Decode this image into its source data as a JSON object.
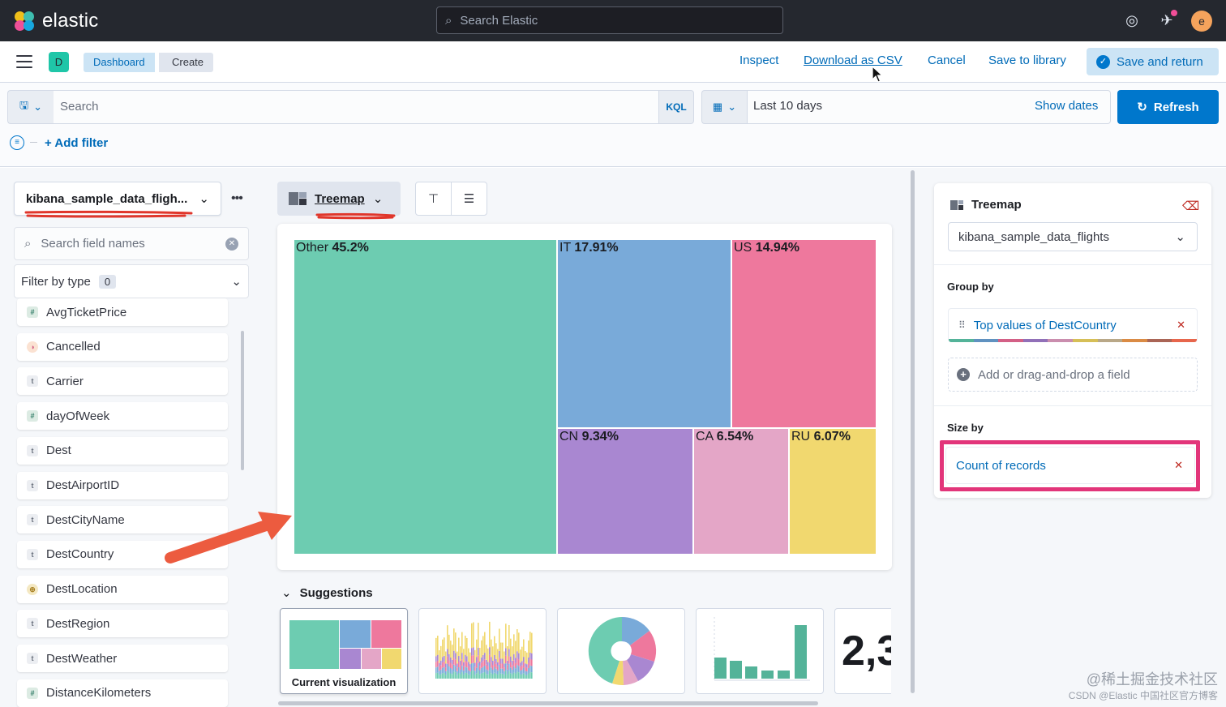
{
  "app": {
    "brand": "elastic",
    "search_placeholder": "Search Elastic",
    "user_initial": "e"
  },
  "navbar": {
    "space_initial": "D",
    "breadcrumbs": [
      "Dashboard",
      "Create"
    ],
    "links": {
      "inspect": "Inspect",
      "download_csv": "Download as CSV",
      "cancel": "Cancel",
      "save_library": "Save to library",
      "save_return": "Save and return"
    }
  },
  "query": {
    "placeholder": "Search",
    "language": "KQL",
    "time_range": "Last 10 days",
    "show_dates": "Show dates",
    "refresh": "Refresh",
    "add_filter": "+ Add filter"
  },
  "sidebar": {
    "data_view": "kibana_sample_data_fligh...",
    "field_search_placeholder": "Search field names",
    "filter_by_type": "Filter by type",
    "filter_count": "0",
    "fields": [
      {
        "name": "AvgTicketPrice",
        "type": "number",
        "glyph": "#"
      },
      {
        "name": "Cancelled",
        "type": "boolean",
        "glyph": "◑"
      },
      {
        "name": "Carrier",
        "type": "string",
        "glyph": "t"
      },
      {
        "name": "dayOfWeek",
        "type": "number",
        "glyph": "#"
      },
      {
        "name": "Dest",
        "type": "string",
        "glyph": "t"
      },
      {
        "name": "DestAirportID",
        "type": "string",
        "glyph": "t"
      },
      {
        "name": "DestCityName",
        "type": "string",
        "glyph": "t"
      },
      {
        "name": "DestCountry",
        "type": "string",
        "glyph": "t"
      },
      {
        "name": "DestLocation",
        "type": "geo",
        "glyph": "⊕"
      },
      {
        "name": "DestRegion",
        "type": "string",
        "glyph": "t"
      },
      {
        "name": "DestWeather",
        "type": "string",
        "glyph": "t"
      },
      {
        "name": "DistanceKilometers",
        "type": "number",
        "glyph": "#"
      }
    ]
  },
  "workspace": {
    "vis_type": "Treemap",
    "treemap": [
      {
        "label": "Other",
        "value": "45.2%",
        "color": "#6dccb1"
      },
      {
        "label": "IT",
        "value": "17.91%",
        "color": "#79aad9"
      },
      {
        "label": "US",
        "value": "14.94%",
        "color": "#ee789d"
      },
      {
        "label": "CN",
        "value": "9.34%",
        "color": "#a987d1"
      },
      {
        "label": "CA",
        "value": "6.54%",
        "color": "#e4a6c7"
      },
      {
        "label": "RU",
        "value": "6.07%",
        "color": "#f1d86f"
      }
    ],
    "suggestions_title": "Suggestions",
    "suggestions": [
      {
        "label": "Current visualization",
        "kind": "treemap"
      },
      {
        "label": "",
        "kind": "bar-histogram"
      },
      {
        "label": "",
        "kind": "donut"
      },
      {
        "label": "",
        "kind": "bar-vertical"
      },
      {
        "label": "2,3",
        "kind": "metric"
      }
    ]
  },
  "config": {
    "layer_type": "Treemap",
    "index": "kibana_sample_data_flights",
    "group_by_title": "Group by",
    "group_by_value": "Top values of DestCountry",
    "add_field": "Add or drag-and-drop a field",
    "size_by_title": "Size by",
    "size_by_value": "Count of records",
    "palette": [
      "#54b399",
      "#6092c0",
      "#d36086",
      "#9170b8",
      "#ca8eae",
      "#d6bf57",
      "#b9a888",
      "#da8b45",
      "#aa6556",
      "#e7664c"
    ]
  },
  "watermark": {
    "line1": "@稀土掘金技术社区",
    "line2": "CSDN @Elastic 中国社区官方博客"
  },
  "annotations": {
    "highlight_color": "#e2357a",
    "arrow_color": "#ec5b3f",
    "underline_color": "#e0362b"
  }
}
